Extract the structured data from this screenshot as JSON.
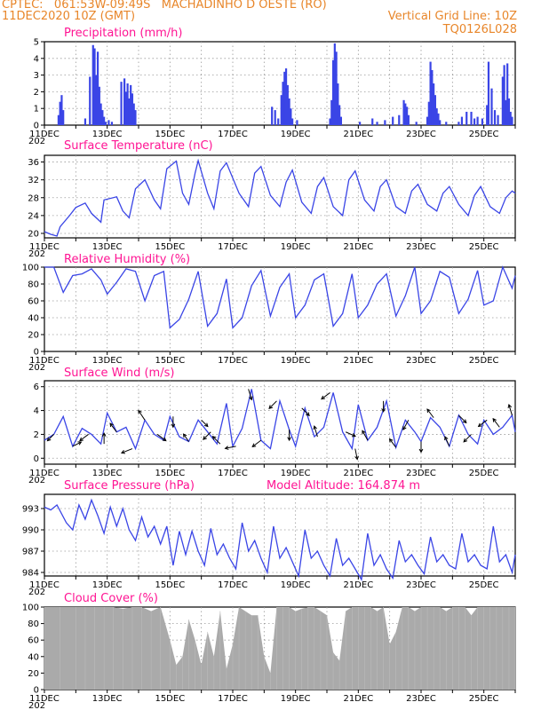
{
  "header": {
    "line1": "CPTEC:   061:53W-09:49S   MACHADINHO D OESTE (RO)",
    "line2_left": "11DEC2020 10Z (GMT)",
    "line2_right": "Vertical Grid Line: 10Z",
    "line3_right": "TQ0126L028"
  },
  "colors": {
    "header": "#e8862a",
    "title": "#ff1493",
    "line": "#3a45e6",
    "cloud": "#aaaaaa"
  },
  "x_axis": {
    "labels": [
      "11DEC",
      "13DEC",
      "15DEC",
      "17DEC",
      "19DEC",
      "21DEC",
      "23DEC",
      "25DEC"
    ],
    "year_fragment": "202",
    "start_day": 11,
    "end_day": 26
  },
  "chart_data": [
    {
      "type": "bar",
      "id": "precip",
      "title": "Precipitation (mm/h)",
      "ylim": [
        0,
        5
      ],
      "yticks": [
        0,
        1,
        2,
        3,
        4,
        5
      ],
      "x_day": [
        11.45,
        11.5,
        11.55,
        11.6,
        12.3,
        12.45,
        12.55,
        12.6,
        12.65,
        12.7,
        12.75,
        12.8,
        12.85,
        12.9,
        12.95,
        13.05,
        13.15,
        13.45,
        13.55,
        13.6,
        13.65,
        13.7,
        13.75,
        13.8,
        13.85,
        13.9,
        18.25,
        18.35,
        18.45,
        18.55,
        18.6,
        18.65,
        18.7,
        18.75,
        18.8,
        18.85,
        18.9,
        19.05,
        20.1,
        20.15,
        20.2,
        20.25,
        20.3,
        20.35,
        20.4,
        20.45,
        21.05,
        21.45,
        21.6,
        21.85,
        22.1,
        22.3,
        22.45,
        22.5,
        22.55,
        22.6,
        22.85,
        23.2,
        23.25,
        23.3,
        23.35,
        23.4,
        23.45,
        23.5,
        23.55,
        23.6,
        23.8,
        24.2,
        24.3,
        24.45,
        24.6,
        24.7,
        24.8,
        24.95,
        25.1,
        25.15,
        25.25,
        25.35,
        25.45,
        25.6,
        25.65,
        25.7,
        25.75,
        25.8,
        25.85,
        25.9
      ],
      "values": [
        0.6,
        1.4,
        1.8,
        0.9,
        0.4,
        2.9,
        4.8,
        4.6,
        3.0,
        4.4,
        2.3,
        1.3,
        0.9,
        0.5,
        0.2,
        0.3,
        0.2,
        2.6,
        2.8,
        2.0,
        2.5,
        1.6,
        2.4,
        1.9,
        1.3,
        0.9,
        1.1,
        0.9,
        0.4,
        1.8,
        2.6,
        3.2,
        3.4,
        2.4,
        1.6,
        1.0,
        0.4,
        0.3,
        0.4,
        1.5,
        3.9,
        4.9,
        4.4,
        2.5,
        1.2,
        0.5,
        0.2,
        0.4,
        0.2,
        0.3,
        0.5,
        0.6,
        1.5,
        1.3,
        1.1,
        0.6,
        0.2,
        0.5,
        1.4,
        3.8,
        3.3,
        2.5,
        1.8,
        1.0,
        0.7,
        0.3,
        0.2,
        0.2,
        0.5,
        0.8,
        0.8,
        0.4,
        0.5,
        0.4,
        1.2,
        3.8,
        2.2,
        0.9,
        0.6,
        2.9,
        3.6,
        1.5,
        3.7,
        1.6,
        0.8,
        0.5
      ]
    },
    {
      "type": "line",
      "id": "temperature",
      "title": "Surface Temperature (nC)",
      "ylim": [
        19,
        37.5
      ],
      "yticks": [
        20,
        24,
        28,
        32,
        36
      ],
      "x_day": [
        11.0,
        11.2,
        11.4,
        11.5,
        11.8,
        12.0,
        12.3,
        12.5,
        12.8,
        12.9,
        13.3,
        13.5,
        13.7,
        13.9,
        14.2,
        14.5,
        14.7,
        14.9,
        15.2,
        15.4,
        15.6,
        15.8,
        15.9,
        16.2,
        16.4,
        16.6,
        16.8,
        17.2,
        17.5,
        17.7,
        17.9,
        18.2,
        18.5,
        18.7,
        18.9,
        19.2,
        19.5,
        19.7,
        19.9,
        20.2,
        20.5,
        20.7,
        20.9,
        21.2,
        21.5,
        21.7,
        21.9,
        22.2,
        22.5,
        22.7,
        22.9,
        23.2,
        23.5,
        23.7,
        23.9,
        24.2,
        24.5,
        24.7,
        24.9,
        25.2,
        25.5,
        25.7,
        25.9,
        26.0
      ],
      "values": [
        20.4,
        19.8,
        19.4,
        21.5,
        24.0,
        25.8,
        26.8,
        24.5,
        22.5,
        27.5,
        28.2,
        25.0,
        23.5,
        30.0,
        32.0,
        27.5,
        25.5,
        34.5,
        36.2,
        29.0,
        26.5,
        33.5,
        36.3,
        29.0,
        25.5,
        34.0,
        35.8,
        29.0,
        26.0,
        33.5,
        35.0,
        28.5,
        26.0,
        31.5,
        34.2,
        27.0,
        24.5,
        30.5,
        32.5,
        26.0,
        24.0,
        32.0,
        34.0,
        27.5,
        25.0,
        30.5,
        32.0,
        26.0,
        24.5,
        29.5,
        31.0,
        26.5,
        25.0,
        29.0,
        30.5,
        26.5,
        24.0,
        28.5,
        30.5,
        26.0,
        24.5,
        28.0,
        29.5,
        29.0
      ]
    },
    {
      "type": "line",
      "id": "humidity",
      "title": "Relative Humidity (%)",
      "ylim": [
        0,
        100
      ],
      "yticks": [
        0,
        20,
        40,
        60,
        80,
        100
      ],
      "x_day": [
        11.0,
        11.3,
        11.6,
        11.9,
        12.2,
        12.5,
        12.8,
        13.0,
        13.3,
        13.6,
        13.9,
        14.2,
        14.5,
        14.8,
        15.0,
        15.3,
        15.6,
        15.9,
        16.2,
        16.5,
        16.8,
        17.0,
        17.3,
        17.6,
        17.9,
        18.2,
        18.5,
        18.8,
        19.0,
        19.3,
        19.6,
        19.9,
        20.2,
        20.5,
        20.8,
        21.0,
        21.3,
        21.6,
        21.9,
        22.2,
        22.5,
        22.8,
        23.0,
        23.3,
        23.6,
        23.9,
        24.2,
        24.5,
        24.8,
        25.0,
        25.3,
        25.6,
        25.9,
        26.0
      ],
      "values": [
        100,
        100,
        70,
        90,
        92,
        98,
        85,
        68,
        82,
        98,
        95,
        60,
        90,
        95,
        28,
        38,
        62,
        95,
        30,
        45,
        86,
        28,
        40,
        78,
        96,
        42,
        76,
        92,
        40,
        55,
        85,
        92,
        30,
        45,
        92,
        40,
        55,
        80,
        92,
        42,
        66,
        100,
        45,
        60,
        95,
        88,
        45,
        62,
        96,
        55,
        60,
        100,
        75,
        90
      ]
    },
    {
      "type": "line",
      "id": "wind",
      "title": "Surface Wind (m/s)",
      "ylim": [
        -0.5,
        6.5
      ],
      "yticks": [
        0,
        2,
        4,
        6
      ],
      "x_day": [
        11.0,
        11.3,
        11.6,
        11.9,
        12.2,
        12.5,
        12.8,
        13.0,
        13.3,
        13.6,
        13.9,
        14.2,
        14.5,
        14.8,
        15.0,
        15.3,
        15.6,
        15.9,
        16.2,
        16.5,
        16.8,
        17.0,
        17.3,
        17.6,
        17.9,
        18.2,
        18.5,
        18.8,
        19.0,
        19.3,
        19.6,
        19.9,
        20.2,
        20.5,
        20.8,
        21.0,
        21.3,
        21.6,
        21.9,
        22.2,
        22.5,
        22.8,
        23.0,
        23.3,
        23.6,
        23.9,
        24.2,
        24.5,
        24.8,
        25.0,
        25.3,
        25.6,
        25.9,
        26.0
      ],
      "values": [
        1.5,
        2.0,
        3.5,
        1.0,
        2.5,
        2.0,
        1.2,
        3.8,
        2.2,
        2.6,
        0.8,
        3.2,
        2.0,
        1.5,
        3.5,
        1.8,
        1.4,
        3.2,
        2.2,
        1.2,
        4.6,
        1.0,
        2.5,
        5.8,
        1.5,
        0.8,
        4.8,
        2.4,
        1.0,
        4.2,
        1.8,
        2.6,
        5.5,
        2.2,
        0.8,
        4.5,
        1.5,
        2.6,
        4.8,
        0.9,
        3.2,
        2.2,
        1.4,
        3.4,
        2.6,
        1.0,
        3.6,
        2.0,
        1.2,
        3.2,
        2.0,
        2.6,
        3.6,
        2.2
      ],
      "arrows": [
        {
          "day": 11.3,
          "u": -0.6,
          "v": -0.6
        },
        {
          "day": 11.9,
          "u": 0.8,
          "v": 0.4
        },
        {
          "day": 12.4,
          "u": -0.8,
          "v": -0.6
        },
        {
          "day": 12.9,
          "u": 0.0,
          "v": 1.0
        },
        {
          "day": 13.3,
          "u": -0.6,
          "v": 0.8
        },
        {
          "day": 13.8,
          "u": -1.0,
          "v": -0.4
        },
        {
          "day": 14.2,
          "u": -0.6,
          "v": 0.9
        },
        {
          "day": 14.6,
          "u": 0.8,
          "v": -0.6
        },
        {
          "day": 15.1,
          "u": 0.0,
          "v": -1.0
        },
        {
          "day": 15.6,
          "u": -0.5,
          "v": 0.7
        },
        {
          "day": 16.0,
          "u": 0.6,
          "v": -0.6
        },
        {
          "day": 16.3,
          "u": -0.7,
          "v": -0.7
        },
        {
          "day": 16.6,
          "u": -0.7,
          "v": 0.7
        },
        {
          "day": 17.1,
          "u": -1.0,
          "v": -0.2
        },
        {
          "day": 17.5,
          "u": 0.3,
          "v": -1.0
        },
        {
          "day": 17.9,
          "u": -0.8,
          "v": -0.6
        },
        {
          "day": 18.4,
          "u": -0.7,
          "v": -0.7
        },
        {
          "day": 18.8,
          "u": 0.0,
          "v": -1.0
        },
        {
          "day": 19.2,
          "u": 0.7,
          "v": -0.7
        },
        {
          "day": 19.7,
          "u": -0.3,
          "v": 1.0
        },
        {
          "day": 20.1,
          "u": -0.8,
          "v": -0.6
        },
        {
          "day": 20.6,
          "u": 0.9,
          "v": -0.4
        },
        {
          "day": 20.9,
          "u": 0.2,
          "v": -1.0
        },
        {
          "day": 21.3,
          "u": -0.5,
          "v": 0.9
        },
        {
          "day": 21.8,
          "u": 0.0,
          "v": -1.0
        },
        {
          "day": 22.2,
          "u": -0.6,
          "v": 0.8
        },
        {
          "day": 22.6,
          "u": -0.5,
          "v": -0.9
        },
        {
          "day": 23.0,
          "u": 0.0,
          "v": -1.0
        },
        {
          "day": 23.4,
          "u": -0.6,
          "v": 0.8
        },
        {
          "day": 23.9,
          "u": -0.4,
          "v": 0.9
        },
        {
          "day": 24.2,
          "u": 0.7,
          "v": -0.7
        },
        {
          "day": 24.6,
          "u": -0.7,
          "v": -0.7
        },
        {
          "day": 25.1,
          "u": -0.8,
          "v": -0.6
        },
        {
          "day": 25.5,
          "u": -0.6,
          "v": 0.8
        },
        {
          "day": 25.9,
          "u": -0.3,
          "v": 1.0
        }
      ]
    },
    {
      "type": "line",
      "id": "pressure",
      "title": "Surface Pressure (hPa)",
      "annotation": "Model Altitude: 164.874 m",
      "ylim": [
        983.5,
        995
      ],
      "yticks": [
        984,
        987,
        990,
        993
      ],
      "x_day": [
        11.0,
        11.2,
        11.4,
        11.7,
        11.9,
        12.1,
        12.3,
        12.5,
        12.7,
        12.9,
        13.1,
        13.3,
        13.5,
        13.7,
        13.9,
        14.1,
        14.3,
        14.5,
        14.7,
        14.9,
        15.1,
        15.3,
        15.5,
        15.7,
        15.9,
        16.1,
        16.3,
        16.5,
        16.7,
        16.9,
        17.1,
        17.3,
        17.5,
        17.7,
        17.9,
        18.1,
        18.3,
        18.5,
        18.7,
        18.9,
        19.1,
        19.3,
        19.5,
        19.7,
        19.9,
        20.1,
        20.3,
        20.5,
        20.7,
        20.9,
        21.1,
        21.3,
        21.5,
        21.7,
        21.9,
        22.1,
        22.3,
        22.5,
        22.7,
        22.9,
        23.1,
        23.3,
        23.5,
        23.7,
        23.9,
        24.1,
        24.3,
        24.5,
        24.7,
        24.9,
        25.1,
        25.3,
        25.5,
        25.7,
        25.9,
        26.0
      ],
      "values": [
        993.2,
        992.8,
        993.5,
        991.0,
        990.0,
        993.5,
        991.5,
        994.2,
        992.0,
        989.5,
        993.2,
        990.5,
        993.0,
        990.0,
        988.5,
        991.8,
        989.0,
        990.5,
        988.0,
        990.5,
        985.0,
        989.8,
        986.5,
        989.8,
        987.0,
        985.0,
        990.2,
        986.5,
        988.0,
        986.0,
        984.5,
        991.0,
        987.0,
        988.5,
        986.0,
        984.0,
        990.5,
        986.0,
        987.5,
        985.5,
        983.5,
        990.0,
        986.0,
        987.0,
        985.0,
        983.5,
        988.8,
        985.0,
        986.0,
        984.5,
        983.0,
        989.5,
        985.0,
        986.5,
        984.5,
        983.2,
        988.5,
        985.5,
        986.5,
        985.0,
        983.8,
        989.0,
        985.5,
        986.5,
        985.0,
        984.5,
        989.5,
        985.5,
        986.5,
        985.0,
        984.5,
        990.5,
        985.5,
        986.5,
        984.0,
        986.5
      ]
    },
    {
      "type": "bar",
      "id": "cloud",
      "title": "Cloud Cover (%)",
      "ylim": [
        0,
        100
      ],
      "yticks": [
        0,
        20,
        40,
        60,
        80,
        100
      ],
      "x_day": [
        11.0,
        11.5,
        12.0,
        12.3,
        12.6,
        12.9,
        13.2,
        13.5,
        13.8,
        14.1,
        14.4,
        14.7,
        15.0,
        15.2,
        15.4,
        15.6,
        15.8,
        16.0,
        16.2,
        16.4,
        16.6,
        16.8,
        17.0,
        17.2,
        17.4,
        17.6,
        17.8,
        18.0,
        18.2,
        18.4,
        18.6,
        18.8,
        19.0,
        19.2,
        19.4,
        19.6,
        19.8,
        20.0,
        20.2,
        20.4,
        20.6,
        20.8,
        21.0,
        21.2,
        21.4,
        21.6,
        21.8,
        22.0,
        22.2,
        22.4,
        22.6,
        22.8,
        23.0,
        23.2,
        23.4,
        23.6,
        23.8,
        24.0,
        24.2,
        24.4,
        24.6,
        24.8,
        25.0,
        25.2,
        25.4,
        25.6,
        25.8,
        26.0
      ],
      "values": [
        100,
        100,
        100,
        100,
        100,
        100,
        100,
        98,
        100,
        100,
        95,
        100,
        60,
        30,
        40,
        85,
        60,
        30,
        70,
        40,
        95,
        25,
        55,
        100,
        95,
        90,
        90,
        40,
        20,
        100,
        100,
        100,
        95,
        98,
        100,
        100,
        95,
        90,
        45,
        35,
        95,
        100,
        100,
        100,
        100,
        95,
        100,
        55,
        70,
        100,
        100,
        95,
        100,
        100,
        100,
        100,
        95,
        100,
        100,
        100,
        90,
        100,
        100,
        100,
        100,
        100,
        100,
        100
      ]
    }
  ]
}
